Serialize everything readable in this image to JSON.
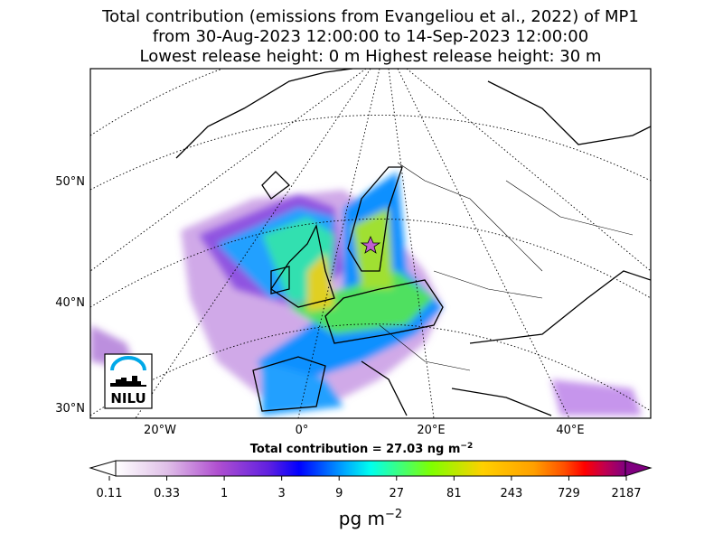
{
  "title": {
    "line1": "Total contribution (emissions from Evangeliou et al., 2022) of MP1",
    "line2": "from 30-Aug-2023 12:00:00 to 14-Sep-2023 12:00:00",
    "line3": "Lowest release height: 0 m      Highest release height: 30 m"
  },
  "map": {
    "lat_labels": [
      "50°N",
      "40°N",
      "30°N"
    ],
    "lon_labels": [
      "20°W",
      "0°",
      "20°E",
      "40°E"
    ],
    "logo_text": "NILU",
    "release_marker": "star-icon"
  },
  "colorbar": {
    "summary": "Total contribution = 27.03 ng m",
    "summary_exp": "−2",
    "ticks": [
      "0.11",
      "0.33",
      "1",
      "3",
      "9",
      "27",
      "81",
      "243",
      "729",
      "2187"
    ],
    "unit": "pg m",
    "unit_exp": "−2",
    "colors": [
      "#ffffff",
      "#c890d8",
      "#a040d0",
      "#0000ff",
      "#00aaff",
      "#00ffee",
      "#80ff00",
      "#ffd000",
      "#ffa000",
      "#ff5000",
      "#ff0000",
      "#c00050",
      "#800080"
    ]
  }
}
